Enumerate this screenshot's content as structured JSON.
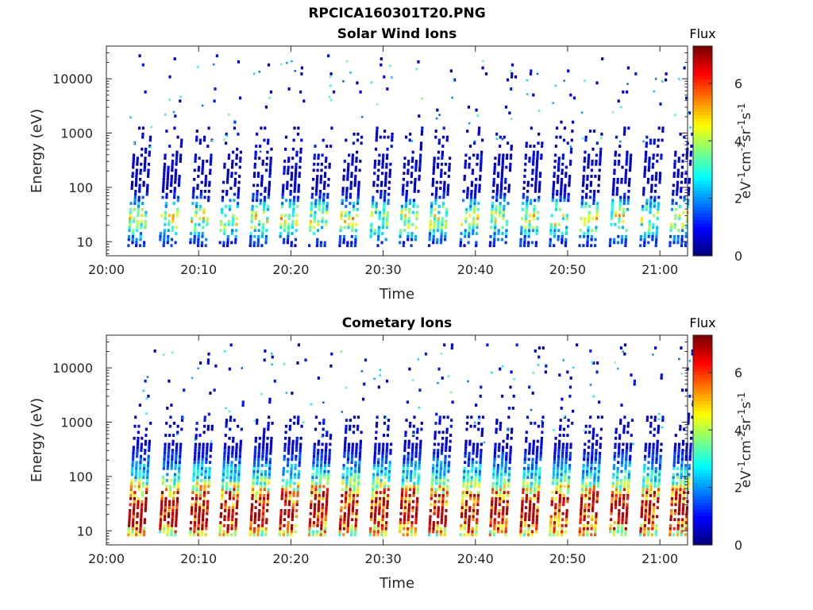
{
  "title": "RPCICA160301T20.PNG",
  "chart_data": [
    {
      "type": "heatmap",
      "title": "Solar Wind Ions",
      "xlabel": "Time",
      "ylabel": "Energy (eV)",
      "x_ticks": [
        "20:00",
        "20:10",
        "20:20",
        "20:30",
        "20:40",
        "20:50",
        "21:00"
      ],
      "x_range": [
        "20:00",
        "21:03"
      ],
      "y_scale": "log",
      "y_ticks": [
        "10",
        "100",
        "1000",
        "10000"
      ],
      "y_range": [
        5.5,
        40000
      ],
      "colorbar": {
        "title": "Flux",
        "label": "eV-1cm-2sr-1s-1",
        "ticks": [
          "0",
          "2",
          "4",
          "6"
        ],
        "range": [
          0,
          7.3
        ]
      },
      "grid": false,
      "scan_times_min": [
        3.4,
        6.8,
        10.1,
        13.3,
        16.6,
        19.8,
        23.0,
        26.3,
        29.6,
        32.8,
        36.0,
        39.4,
        42.6,
        45.9,
        49.1,
        52.3,
        55.6,
        58.9,
        62.1
      ],
      "peak_energy_eV": 25,
      "peak_flux": 3.5
    },
    {
      "type": "heatmap",
      "title": "Cometary Ions",
      "xlabel": "Time",
      "ylabel": "Energy (eV)",
      "x_ticks": [
        "20:00",
        "20:10",
        "20:20",
        "20:30",
        "20:40",
        "20:50",
        "21:00"
      ],
      "x_range": [
        "20:00",
        "21:03"
      ],
      "y_scale": "log",
      "y_ticks": [
        "10",
        "100",
        "1000",
        "10000"
      ],
      "y_range": [
        5.5,
        40000
      ],
      "colorbar": {
        "title": "Flux",
        "label": "eV-1cm-2sr-1s-1",
        "ticks": [
          "0",
          "2",
          "4",
          "6"
        ],
        "range": [
          0,
          7.3
        ]
      },
      "grid": false,
      "scan_times_min": [
        3.4,
        6.8,
        10.1,
        13.3,
        16.6,
        19.8,
        23.0,
        26.3,
        29.6,
        32.8,
        36.0,
        39.4,
        42.6,
        45.9,
        49.1,
        52.3,
        55.6,
        58.9,
        62.1
      ],
      "peak_energy_eV": 22,
      "peak_flux": 6.5
    }
  ]
}
